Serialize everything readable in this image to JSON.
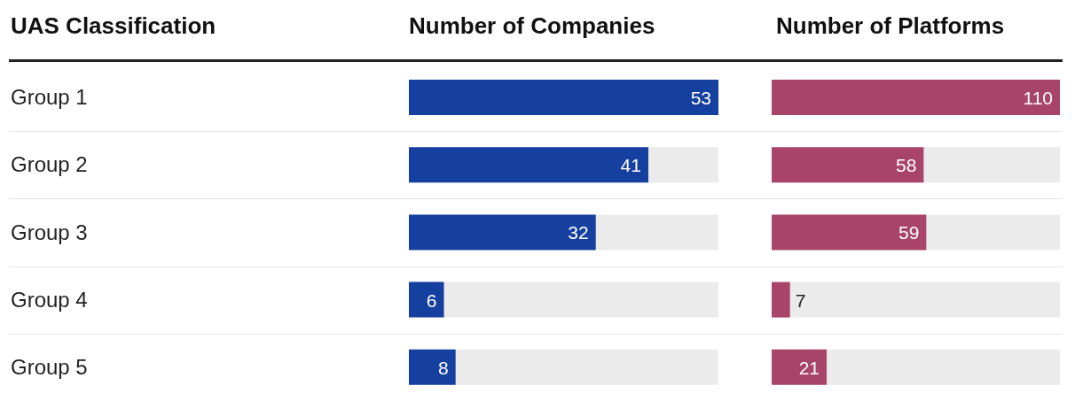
{
  "chart_data": [
    {
      "type": "bar",
      "orientation": "horizontal",
      "title": "Number of Companies",
      "ylabel": "UAS Classification",
      "categories": [
        "Group 1",
        "Group 2",
        "Group 3",
        "Group 4",
        "Group 5"
      ],
      "values": [
        53,
        41,
        32,
        6,
        8
      ],
      "color": "#1540a0",
      "xlim": [
        0,
        53
      ],
      "data_labels": true,
      "tick_labels": "y"
    },
    {
      "type": "bar",
      "orientation": "horizontal",
      "title": "Number of Platforms",
      "categories": [
        null,
        null,
        null,
        null,
        null
      ],
      "values": [
        110,
        58,
        59,
        7,
        21
      ],
      "color": "#a84468",
      "xlim": [
        0,
        110
      ],
      "data_labels": true,
      "tick_labels": false
    }
  ]
}
